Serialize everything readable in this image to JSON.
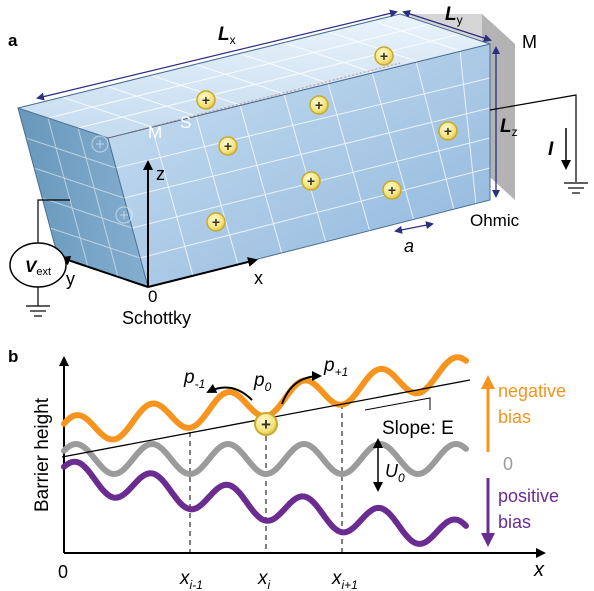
{
  "panel_a": {
    "label": "a",
    "dim_x": "L",
    "dim_x_sub": "x",
    "dim_y": "L",
    "dim_y_sub": "y",
    "dim_z": "L",
    "dim_z_sub": "z",
    "metal_right": "M",
    "metal_left": "M",
    "semiconductor": "S",
    "ohmic": "Ohmic",
    "schottky": "Schottky",
    "axis_x": "x",
    "axis_y": "y",
    "axis_z": "z",
    "origin": "0",
    "spacing": "a",
    "current": "I",
    "vext": "V",
    "vext_sub": "ext",
    "charge_symbol": "+"
  },
  "panel_b": {
    "label": "b",
    "ylabel": "Barrier height",
    "xlabel": "x",
    "origin": "0",
    "ticks": [
      {
        "base": "x",
        "sub": "i-1"
      },
      {
        "base": "x",
        "sub": "i"
      },
      {
        "base": "x",
        "sub": "i+1"
      }
    ],
    "p_minus": {
      "base": "p",
      "sub": "-1"
    },
    "p_zero": {
      "base": "p",
      "sub": "0"
    },
    "p_plus": {
      "base": "p",
      "sub": "+1"
    },
    "slope": "Slope: E",
    "u0": {
      "base": "U",
      "sub": "0"
    },
    "bias_negative": [
      "negative",
      "bias"
    ],
    "bias_zero": "0",
    "bias_positive": [
      "positive",
      "bias"
    ],
    "charge_symbol": "+"
  },
  "colors": {
    "negative": "#f7941d",
    "zero": "#9b9b9b",
    "positive": "#6a2c91",
    "box_face": "#a9c9e6",
    "electrode": "#b3b3b3",
    "navy": "#2b2e83",
    "charge_fill": "#fff3a0",
    "charge_ring": "#e0c843"
  }
}
